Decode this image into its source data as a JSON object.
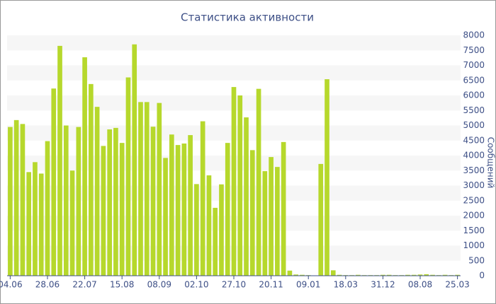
{
  "chart_data": {
    "type": "bar",
    "title": "Статистика активности",
    "y_label": "Сообщений",
    "categories": [
      "04.06",
      null,
      null,
      null,
      null,
      null,
      "28.06",
      null,
      null,
      null,
      null,
      null,
      "22.07",
      null,
      null,
      null,
      null,
      null,
      "15.08",
      null,
      null,
      null,
      null,
      null,
      "08.09",
      null,
      null,
      null,
      null,
      null,
      "02.10",
      null,
      null,
      null,
      null,
      null,
      "27.10",
      null,
      null,
      null,
      null,
      null,
      "20.11",
      null,
      null,
      null,
      null,
      null,
      "09.01",
      null,
      null,
      null,
      null,
      null,
      "18.03",
      null,
      null,
      null,
      null,
      null,
      "31.12",
      null,
      null,
      null,
      null,
      null,
      "08.08",
      null,
      null,
      null,
      null,
      null,
      "25.03"
    ],
    "values": [
      4950,
      5180,
      5050,
      3450,
      3780,
      3400,
      4480,
      6230,
      7650,
      5000,
      3500,
      4950,
      7270,
      6380,
      5620,
      4320,
      4870,
      4920,
      4420,
      6600,
      7700,
      5780,
      5780,
      4960,
      5750,
      3920,
      4700,
      4350,
      4400,
      4680,
      3050,
      5140,
      3340,
      2260,
      3040,
      4420,
      6280,
      6000,
      5270,
      4180,
      6220,
      3480,
      3950,
      3620,
      4450,
      170,
      40,
      30,
      20,
      10,
      3720,
      6540,
      180,
      30,
      20,
      20,
      30,
      20,
      20,
      20,
      30,
      30,
      20,
      20,
      30,
      30,
      40,
      50,
      30,
      20,
      30,
      20,
      30
    ],
    "color": "#b6d82c",
    "ylim": [
      0,
      8000
    ],
    "yticks": [
      0,
      500,
      1000,
      1500,
      2000,
      2500,
      3000,
      3500,
      4000,
      4500,
      5000,
      5500,
      6000,
      6500,
      7000,
      7500,
      8000
    ],
    "grid": true
  }
}
